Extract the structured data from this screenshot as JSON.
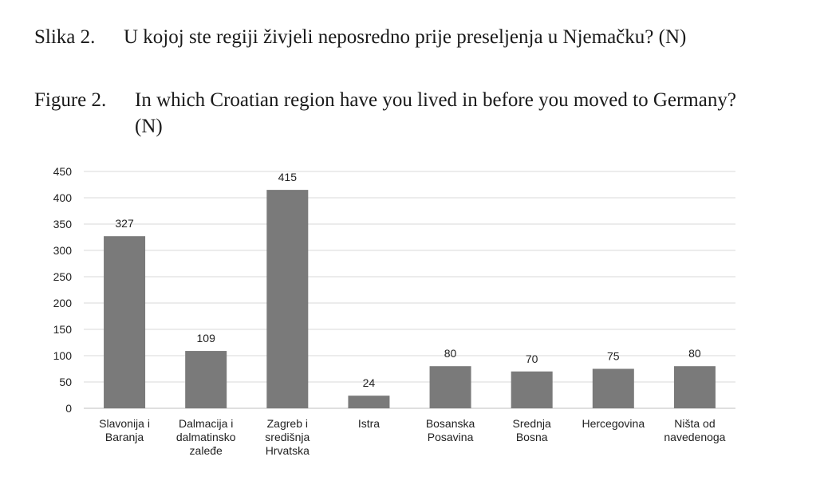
{
  "captions": [
    {
      "label": "Slika 2.",
      "text": "U kojoj ste regiji živjeli neposredno prije preseljenja u Njemačku? (N)"
    },
    {
      "label": "Figure 2.",
      "text": "In which Croatian region have you lived in before you moved to Germany? (N)"
    }
  ],
  "chart_data": {
    "type": "bar",
    "categories": [
      [
        "Slavonija i",
        "Baranja"
      ],
      [
        "Dalmacija i",
        "dalmatinsko",
        "zaleđe"
      ],
      [
        "Zagreb i",
        "središnja",
        "Hrvatska"
      ],
      [
        "Istra"
      ],
      [
        "Bosanska",
        "Posavina"
      ],
      [
        "Srednja",
        "Bosna"
      ],
      [
        "Hercegovina"
      ],
      [
        "Ništa od",
        "navedenoga"
      ]
    ],
    "values": [
      327,
      109,
      415,
      24,
      80,
      70,
      75,
      80
    ],
    "ylim": [
      0,
      450
    ],
    "yticks": [
      0,
      50,
      100,
      150,
      200,
      250,
      300,
      350,
      400,
      450
    ],
    "grid": true,
    "data_labels": true,
    "colors": {
      "bar": "#7a7a7a",
      "grid": "#d9d9d9",
      "axis": "#bfbfbf"
    }
  }
}
